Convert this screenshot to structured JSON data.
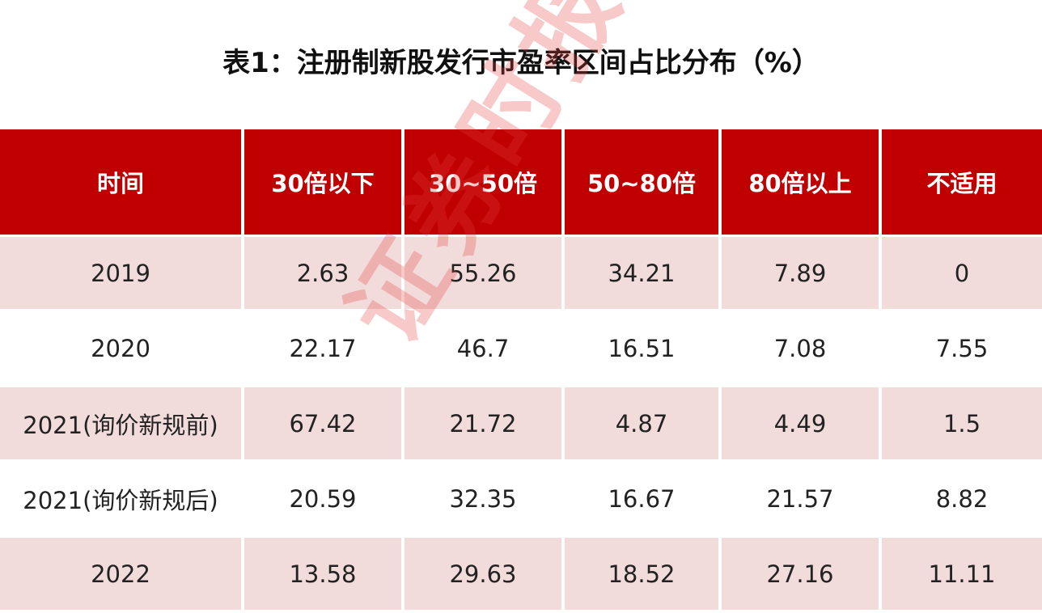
{
  "title": "表1：注册制新股发行市盈率区间占比分布（%）",
  "watermark": "证券时报",
  "table": {
    "header": [
      "时间",
      "30倍以下",
      "30~50倍",
      "50~80倍",
      "80倍以上",
      "不适用"
    ],
    "rows": [
      [
        "2019",
        2.63,
        55.26,
        34.21,
        7.89,
        0
      ],
      [
        "2020",
        22.17,
        46.7,
        16.51,
        7.08,
        7.55
      ],
      [
        "2021(询价新规前)",
        67.42,
        21.72,
        4.87,
        4.49,
        1.5
      ],
      [
        "2021(询价新规后)",
        20.59,
        32.35,
        16.67,
        21.57,
        8.82
      ],
      [
        "2022",
        13.58,
        29.63,
        18.52,
        27.16,
        11.11
      ]
    ]
  }
}
